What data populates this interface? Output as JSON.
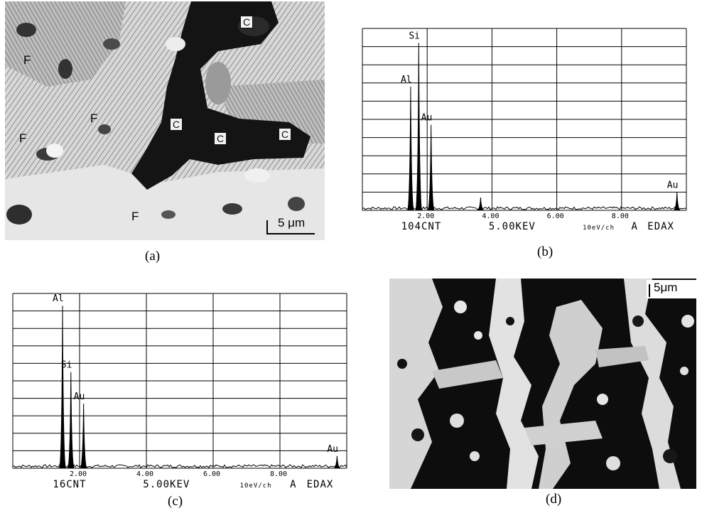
{
  "panels": {
    "a": {
      "caption": "(a)",
      "labels": {
        "F1": "F",
        "F2": "F",
        "F3": "F",
        "F4": "F",
        "C1": "C",
        "C2": "C",
        "C3": "C",
        "C4": "C"
      },
      "scale_bar": "5 μm"
    },
    "b": {
      "caption": "(b)",
      "peaks": [
        {
          "label": "Al",
          "energy": 1.49,
          "height": 0.68
        },
        {
          "label": "Si",
          "energy": 1.74,
          "height": 0.92
        },
        {
          "label": "Au",
          "energy": 2.12,
          "height": 0.47
        },
        {
          "label": "",
          "energy": 3.65,
          "height": 0.07
        },
        {
          "label": "Au",
          "energy": 9.71,
          "height": 0.1
        }
      ],
      "tick_labels": [
        "2.00",
        "4.00",
        "6.00",
        "8.00"
      ],
      "footer": {
        "counts": "104CNT",
        "scale": "5.00KEV",
        "channel": "10eV/ch",
        "mode": "A",
        "system": "EDAX"
      }
    },
    "c": {
      "caption": "(c)",
      "peaks": [
        {
          "label": "Al",
          "energy": 1.49,
          "height": 0.93
        },
        {
          "label": "Si",
          "energy": 1.74,
          "height": 0.55
        },
        {
          "label": "Au",
          "energy": 2.12,
          "height": 0.37
        },
        {
          "label": "Au",
          "energy": 9.71,
          "height": 0.07
        }
      ],
      "tick_labels": [
        "2.00",
        "4.00",
        "6.00",
        "8.00"
      ],
      "footer": {
        "counts": "16CNT",
        "scale": "5.00KEV",
        "channel": "10eV/ch",
        "mode": "A",
        "system": "EDAX"
      }
    },
    "d": {
      "caption": "(d)",
      "scale_bar": "5μm"
    }
  },
  "chart_data": [
    {
      "type": "line",
      "title": "",
      "xlabel": "",
      "ylabel": "",
      "xlim": [
        0,
        10
      ],
      "x_ticks": [
        "2.00",
        "4.00",
        "6.00",
        "8.00"
      ],
      "series": [
        {
          "values": [
            [
              1.49,
              0.68
            ],
            [
              1.74,
              0.92
            ],
            [
              2.12,
              0.47
            ],
            [
              3.65,
              0.07
            ],
            [
              9.71,
              0.1
            ]
          ]
        }
      ],
      "annotations": [
        "Si",
        "Al",
        "Au",
        "Au"
      ],
      "footer": "104CNT 5.00KEV 10eV/ch A EDAX"
    },
    {
      "type": "line",
      "title": "",
      "xlabel": "",
      "ylabel": "",
      "xlim": [
        0,
        10
      ],
      "x_ticks": [
        "2.00",
        "4.00",
        "6.00",
        "8.00"
      ],
      "series": [
        {
          "values": [
            [
              1.49,
              0.93
            ],
            [
              1.74,
              0.55
            ],
            [
              2.12,
              0.37
            ],
            [
              9.71,
              0.07
            ]
          ]
        }
      ],
      "annotations": [
        "Al",
        "Si",
        "Au",
        "Au"
      ],
      "footer": "16CNT 5.00KEV 10eV/ch A EDAX"
    }
  ]
}
